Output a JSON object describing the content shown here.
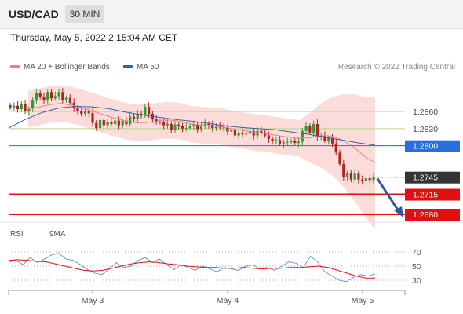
{
  "header": {
    "symbol": "USD/CAD",
    "timeframe": "30 MIN"
  },
  "datetime": "Thursday, May 5, 2022 2:15:04 AM CET",
  "legend": {
    "ma20": {
      "label": "MA 20 + Bollinger Bands",
      "color": "#f08080"
    },
    "ma50": {
      "label": "MA 50",
      "color": "#3b5ea8"
    }
  },
  "research": "Research © 2022 Trading Central",
  "rsi_legend": {
    "rsi": {
      "label": "RSI",
      "color": "#5b7fd6"
    },
    "ma9": {
      "label": "9MA",
      "color": "#e01010"
    }
  },
  "colors": {
    "bull": "#2e9b2e",
    "bear": "#b42020",
    "band": "#fbd5d5",
    "support": "#e01010",
    "pivot": "#2a6fdb",
    "resistance": "#b5d68a",
    "arrow": "#2a5aa0"
  },
  "chart_data": [
    {
      "type": "candlestick",
      "title": "USD/CAD",
      "ylim": [
        1.266,
        1.29
      ],
      "x_ticks": [
        "May 3",
        "May 4",
        "May 5"
      ],
      "levels": [
        {
          "label": "1.2860",
          "value": 1.286,
          "kind": "resistance"
        },
        {
          "label": "1.2830",
          "value": 1.283,
          "kind": "resistance"
        },
        {
          "label": "1.2800",
          "value": 1.28,
          "kind": "pivot"
        },
        {
          "label": "1.2745",
          "value": 1.2745,
          "kind": "last"
        },
        {
          "label": "1.2715",
          "value": 1.2715,
          "kind": "support"
        },
        {
          "label": "1.2680",
          "value": 1.268,
          "kind": "support"
        }
      ],
      "forecast_arrow": {
        "from": 1.2745,
        "to": 1.268
      },
      "series": [
        {
          "name": "USD/CAD",
          "close_path": [
            1.2867,
            1.287,
            1.2864,
            1.2873,
            1.286,
            1.2865,
            1.2879,
            1.2892,
            1.2885,
            1.288,
            1.2894,
            1.2883,
            1.2887,
            1.2894,
            1.288,
            1.2884,
            1.2875,
            1.2866,
            1.2861,
            1.2856,
            1.286,
            1.2857,
            1.284,
            1.2831,
            1.2845,
            1.2836,
            1.2841,
            1.2838,
            1.2844,
            1.2836,
            1.2844,
            1.2838,
            1.2851,
            1.2847,
            1.2856,
            1.2853,
            1.2868,
            1.2856,
            1.2846,
            1.2842,
            1.2841,
            1.2836,
            1.2838,
            1.2827,
            1.2837,
            1.2834,
            1.283,
            1.2831,
            1.2834,
            1.2837,
            1.2829,
            1.2834,
            1.2838,
            1.2837,
            1.2831,
            1.2835,
            1.2832,
            1.2832,
            1.2825,
            1.2828,
            1.2818,
            1.2822,
            1.282,
            1.2821,
            1.2826,
            1.2818,
            1.2826,
            1.2823,
            1.2818,
            1.2812,
            1.2808,
            1.281,
            1.2804,
            1.2806,
            1.2807,
            1.2808,
            1.2805,
            1.2807,
            1.2826,
            1.2835,
            1.2823,
            1.2838,
            1.2815,
            1.2818,
            1.2809,
            1.2814,
            1.2804,
            1.2788,
            1.2768,
            1.2745,
            1.2752,
            1.2741,
            1.2751,
            1.2741,
            1.2738,
            1.2743,
            1.274,
            1.2745
          ]
        },
        {
          "name": "MA 20",
          "values": [
            1.2864,
            1.2868,
            1.2872,
            1.2874,
            1.2871,
            1.2866,
            1.286,
            1.2854,
            1.2848,
            1.2843,
            1.284,
            1.2841,
            1.2843,
            1.2845,
            1.2843,
            1.2838,
            1.2836,
            1.2835,
            1.2833,
            1.2829,
            1.2826,
            1.2823,
            1.2821,
            1.2818,
            1.2815,
            1.2813,
            1.2814,
            1.2818,
            1.2817,
            1.281,
            1.2798,
            1.2782,
            1.277
          ]
        },
        {
          "name": "MA 50",
          "values": [
            1.2831,
            1.2846,
            1.2858,
            1.2866,
            1.2869,
            1.2868,
            1.2865,
            1.2859,
            1.2854,
            1.285,
            1.2846,
            1.2843,
            1.2839,
            1.2835,
            1.2832,
            1.283,
            1.2828,
            1.2824,
            1.282,
            1.2815,
            1.281,
            1.2805,
            1.2801
          ]
        }
      ]
    },
    {
      "type": "line",
      "title": "RSI",
      "ylim": [
        20,
        80
      ],
      "y_ticks": [
        70,
        50,
        30
      ],
      "series": [
        {
          "name": "RSI",
          "values": [
            56,
            58,
            52,
            62,
            55,
            60,
            66,
            68,
            60,
            58,
            52,
            45,
            40,
            38,
            46,
            55,
            48,
            50,
            58,
            62,
            55,
            60,
            52,
            45,
            52,
            48,
            44,
            50,
            46,
            42,
            48,
            46,
            44,
            50,
            52,
            46,
            48,
            44,
            50,
            56,
            54,
            48,
            64,
            56,
            42,
            36,
            30,
            28,
            34,
            38,
            36,
            39
          ]
        },
        {
          "name": "9MA",
          "values": [
            58,
            59,
            58,
            57,
            56,
            53,
            50,
            47,
            44,
            43,
            44,
            47,
            50,
            53,
            55,
            56,
            55,
            53,
            52,
            50,
            49,
            48,
            48,
            47,
            47,
            48,
            47,
            46,
            47,
            47,
            48,
            48,
            49,
            50,
            48,
            44,
            40,
            36,
            33,
            33
          ]
        }
      ]
    }
  ]
}
